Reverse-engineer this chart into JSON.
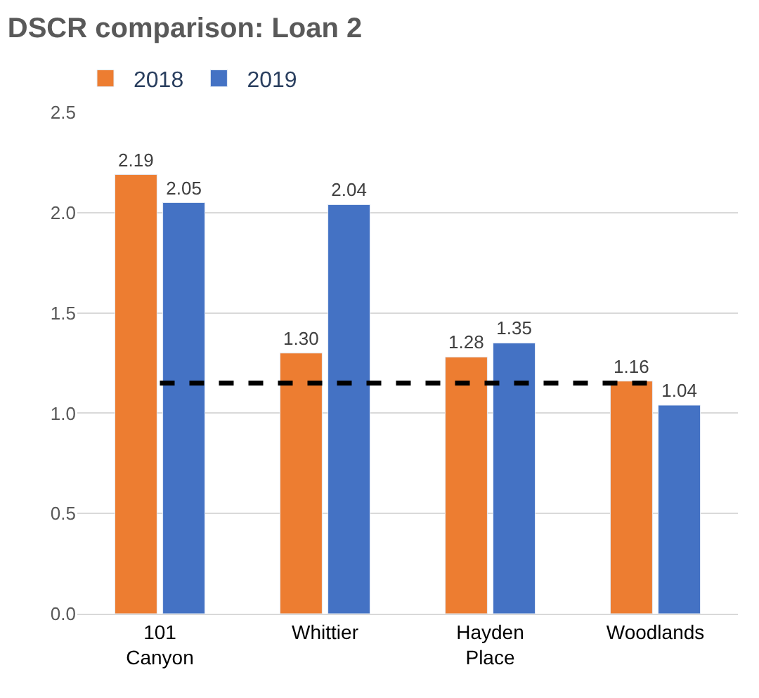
{
  "chart_data": {
    "type": "bar",
    "title": "DSCR comparison: Loan 2",
    "categories": [
      "101 Canyon",
      "Whittier",
      "Hayden Place",
      "Woodlands"
    ],
    "series": [
      {
        "name": "2018",
        "color": "#ed7d31",
        "values": [
          2.19,
          1.3,
          1.28,
          1.16
        ],
        "value_labels": [
          "2.19",
          "1.30",
          "1.28",
          "1.16"
        ]
      },
      {
        "name": "2019",
        "color": "#4472c4",
        "values": [
          2.05,
          2.04,
          1.35,
          1.04
        ],
        "value_labels": [
          "2.05",
          "2.04",
          "1.35",
          "1.04"
        ]
      }
    ],
    "ylim": [
      0,
      2.5
    ],
    "yticks": [
      {
        "value": 0,
        "label": "0.0"
      },
      {
        "value": 0.5,
        "label": "0.5"
      },
      {
        "value": 1,
        "label": "1.0"
      },
      {
        "value": 1.5,
        "label": "1.5"
      },
      {
        "value": 2,
        "label": "2.0"
      },
      {
        "value": 2.5,
        "label": "2.5"
      }
    ],
    "ref_lines": [
      {
        "axis": "y",
        "value": 1.15,
        "label": null,
        "color": "#000000",
        "line_style": "dashed"
      }
    ],
    "grid": "y",
    "legend": "top left"
  }
}
